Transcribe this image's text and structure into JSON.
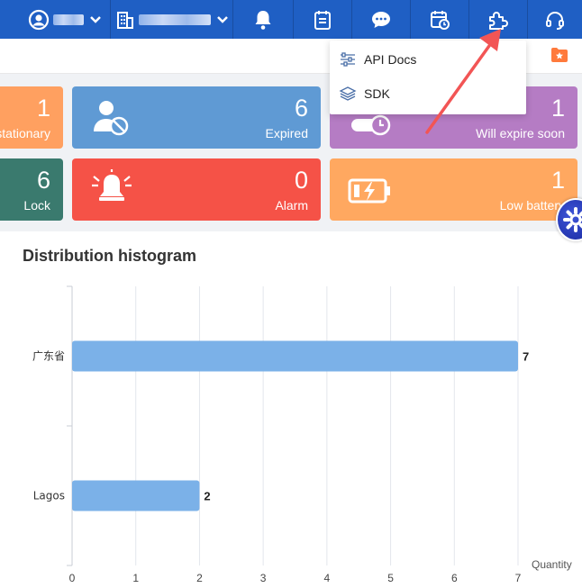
{
  "topbar": {
    "account_label": "",
    "org_label": "",
    "icons": [
      "user-icon",
      "building-icon",
      "bell-icon",
      "notes-icon",
      "chat-icon",
      "calendar-icon",
      "plugin-icon",
      "headset-icon"
    ]
  },
  "dropdown": {
    "items": [
      {
        "label": "API Docs",
        "icon": "sliders-icon"
      },
      {
        "label": "SDK",
        "icon": "layers-icon"
      }
    ]
  },
  "cards": [
    {
      "value": "1",
      "label": "stationary",
      "color": "#ffa060"
    },
    {
      "value": "6",
      "label": "Expired",
      "color": "#5f9ad4"
    },
    {
      "value": "1",
      "label": "Will expire soon",
      "color": "#b57cc4"
    },
    {
      "value": "6",
      "label": "Lock",
      "color": "#3a7a6e"
    },
    {
      "value": "0",
      "label": "Alarm",
      "color": "#f55247"
    },
    {
      "value": "1",
      "label": "Low battery",
      "color": "#ffa860"
    }
  ],
  "chart": {
    "title": "Distribution histogram",
    "x_unit": "Quantity"
  },
  "chart_data": {
    "type": "bar",
    "orientation": "horizontal",
    "categories": [
      "广东省",
      "Lagos"
    ],
    "values": [
      7,
      2
    ],
    "xlabel": "Quantity",
    "xlim": [
      0,
      7
    ],
    "xticks": [
      0,
      1,
      2,
      3,
      4,
      5,
      6,
      7
    ],
    "grid": true,
    "bar_color": "#7bb1e8"
  }
}
